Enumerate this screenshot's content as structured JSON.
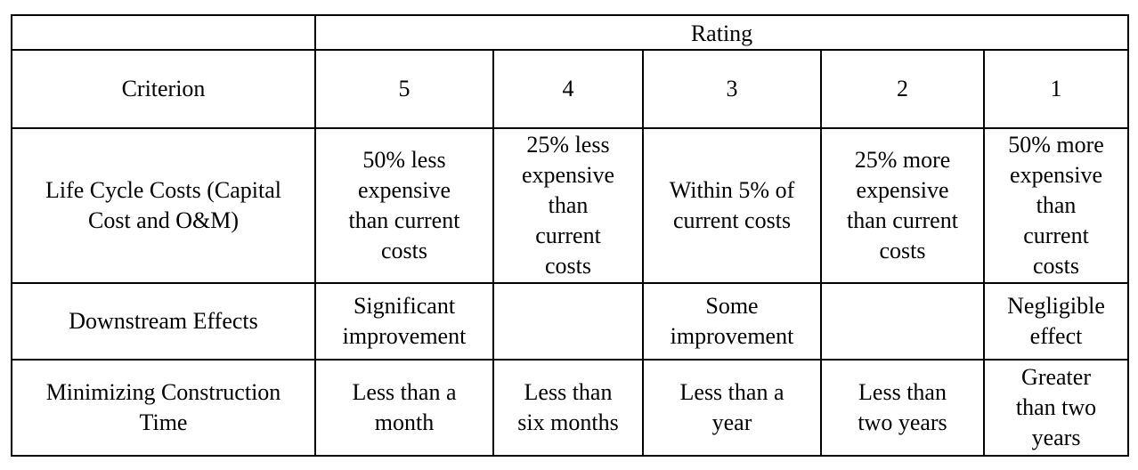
{
  "table": {
    "group_header": "Rating",
    "criterion_header": "Criterion",
    "ratings": [
      "5",
      "4",
      "3",
      "2",
      "1"
    ],
    "rows": [
      {
        "criterion": "Life Cycle Costs (Capital\nCost and O&M)",
        "cells": [
          "50% less\nexpensive\nthan current\ncosts",
          "25% less\nexpensive\nthan\ncurrent\ncosts",
          "Within 5% of\ncurrent costs",
          "25% more\nexpensive\nthan current\ncosts",
          "50% more\nexpensive\nthan\ncurrent\ncosts"
        ]
      },
      {
        "criterion": "Downstream Effects",
        "cells": [
          "Significant\nimprovement",
          "",
          "Some\nimprovement",
          "",
          "Negligible\neffect"
        ]
      },
      {
        "criterion": "Minimizing Construction\nTime",
        "cells": [
          "Less than a\nmonth",
          "Less than\nsix months",
          "Less than a\nyear",
          "Less than\ntwo years",
          "Greater\nthan two\nyears"
        ]
      }
    ]
  }
}
